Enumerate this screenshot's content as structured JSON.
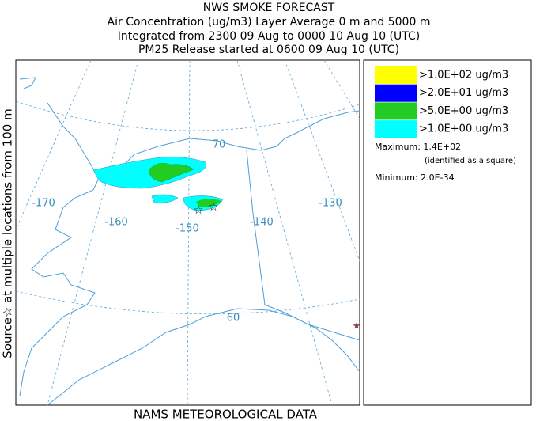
{
  "header": {
    "title": "NWS SMOKE FORECAST",
    "lines": [
      "Air Concentration (ug/m3) Layer Average    0 m and  5000 m",
      "Integrated from 2300 09 Aug to 0000 10 Aug 10 (UTC)",
      "PM25 Release started at 0600 09 Aug 10 (UTC)"
    ]
  },
  "side_label": "Source☆ at multiple locations    from  100 m",
  "map": {
    "longitude_labels": [
      "-170",
      "-160",
      "-150",
      "-140",
      "-130"
    ],
    "latitude_labels": [
      "70",
      "60"
    ]
  },
  "legend": {
    "items": [
      {
        "label": ">1.0E+02 ug/m3",
        "color": "#ffff00"
      },
      {
        "label": ">2.0E+01 ug/m3",
        "color": "#0000ff"
      },
      {
        "label": ">5.0E+00 ug/m3",
        "color": "#22cc22"
      },
      {
        "label": ">1.0E+00 ug/m3",
        "color": "#00ffff"
      }
    ],
    "maximum": "Maximum: 1.4E+02",
    "maximum_note": "(identified as a square)",
    "minimum": "Minimum: 2.0E-34"
  },
  "footer": "NAMS METEOROLOGICAL DATA"
}
